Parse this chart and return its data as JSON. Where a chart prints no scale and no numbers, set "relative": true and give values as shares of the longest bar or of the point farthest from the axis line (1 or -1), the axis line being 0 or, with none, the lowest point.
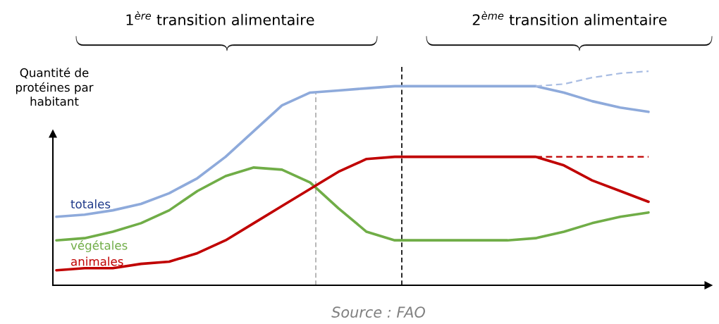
{
  "chart_data": {
    "type": "line",
    "relative": true,
    "ylabel": "Quantité de\nprotéines par\nhabitant",
    "categories": [
      null,
      null,
      null,
      null,
      null,
      null,
      null,
      null,
      null,
      null,
      null,
      null,
      null,
      null,
      null,
      null,
      null,
      null,
      null,
      null,
      null,
      null
    ],
    "series": [
      {
        "name": "totales",
        "color": "#8eaadb",
        "values": [
          0.32,
          0.33,
          0.35,
          0.38,
          0.43,
          0.5,
          0.6,
          0.72,
          0.84,
          0.9,
          0.91,
          0.92,
          0.93,
          0.93,
          0.93,
          0.93,
          0.93,
          0.93,
          0.9,
          0.86,
          0.83,
          0.81
        ]
      },
      {
        "name": "végétales",
        "color": "#70ad47",
        "values": [
          0.21,
          0.22,
          0.25,
          0.29,
          0.35,
          0.44,
          0.51,
          0.55,
          0.54,
          0.48,
          0.36,
          0.25,
          0.21,
          0.21,
          0.21,
          0.21,
          0.21,
          0.22,
          0.25,
          0.29,
          0.32,
          0.34
        ]
      },
      {
        "name": "animales",
        "color": "#c00000",
        "values": [
          0.07,
          0.08,
          0.08,
          0.1,
          0.11,
          0.15,
          0.21,
          0.29,
          0.37,
          0.45,
          0.53,
          0.59,
          0.6,
          0.6,
          0.6,
          0.6,
          0.6,
          0.6,
          0.56,
          0.49,
          0.44,
          0.39
        ]
      },
      {
        "color": "#a9bde3",
        "line_style": "dashed",
        "values": [
          null,
          null,
          null,
          null,
          null,
          null,
          null,
          null,
          null,
          null,
          null,
          null,
          null,
          null,
          null,
          null,
          null,
          0.93,
          0.94,
          0.97,
          0.99,
          1.0
        ]
      },
      {
        "color": "#c00000",
        "line_style": "dashed",
        "values": [
          null,
          null,
          null,
          null,
          null,
          null,
          null,
          null,
          null,
          null,
          null,
          null,
          null,
          null,
          null,
          null,
          null,
          0.6,
          0.6,
          0.6,
          0.6,
          0.6
        ]
      }
    ],
    "annotations": [
      "1$^{ère}$ transition alimentaire",
      "2$^{ème}$ transition alimentaire",
      "Source : FAO"
    ]
  }
}
